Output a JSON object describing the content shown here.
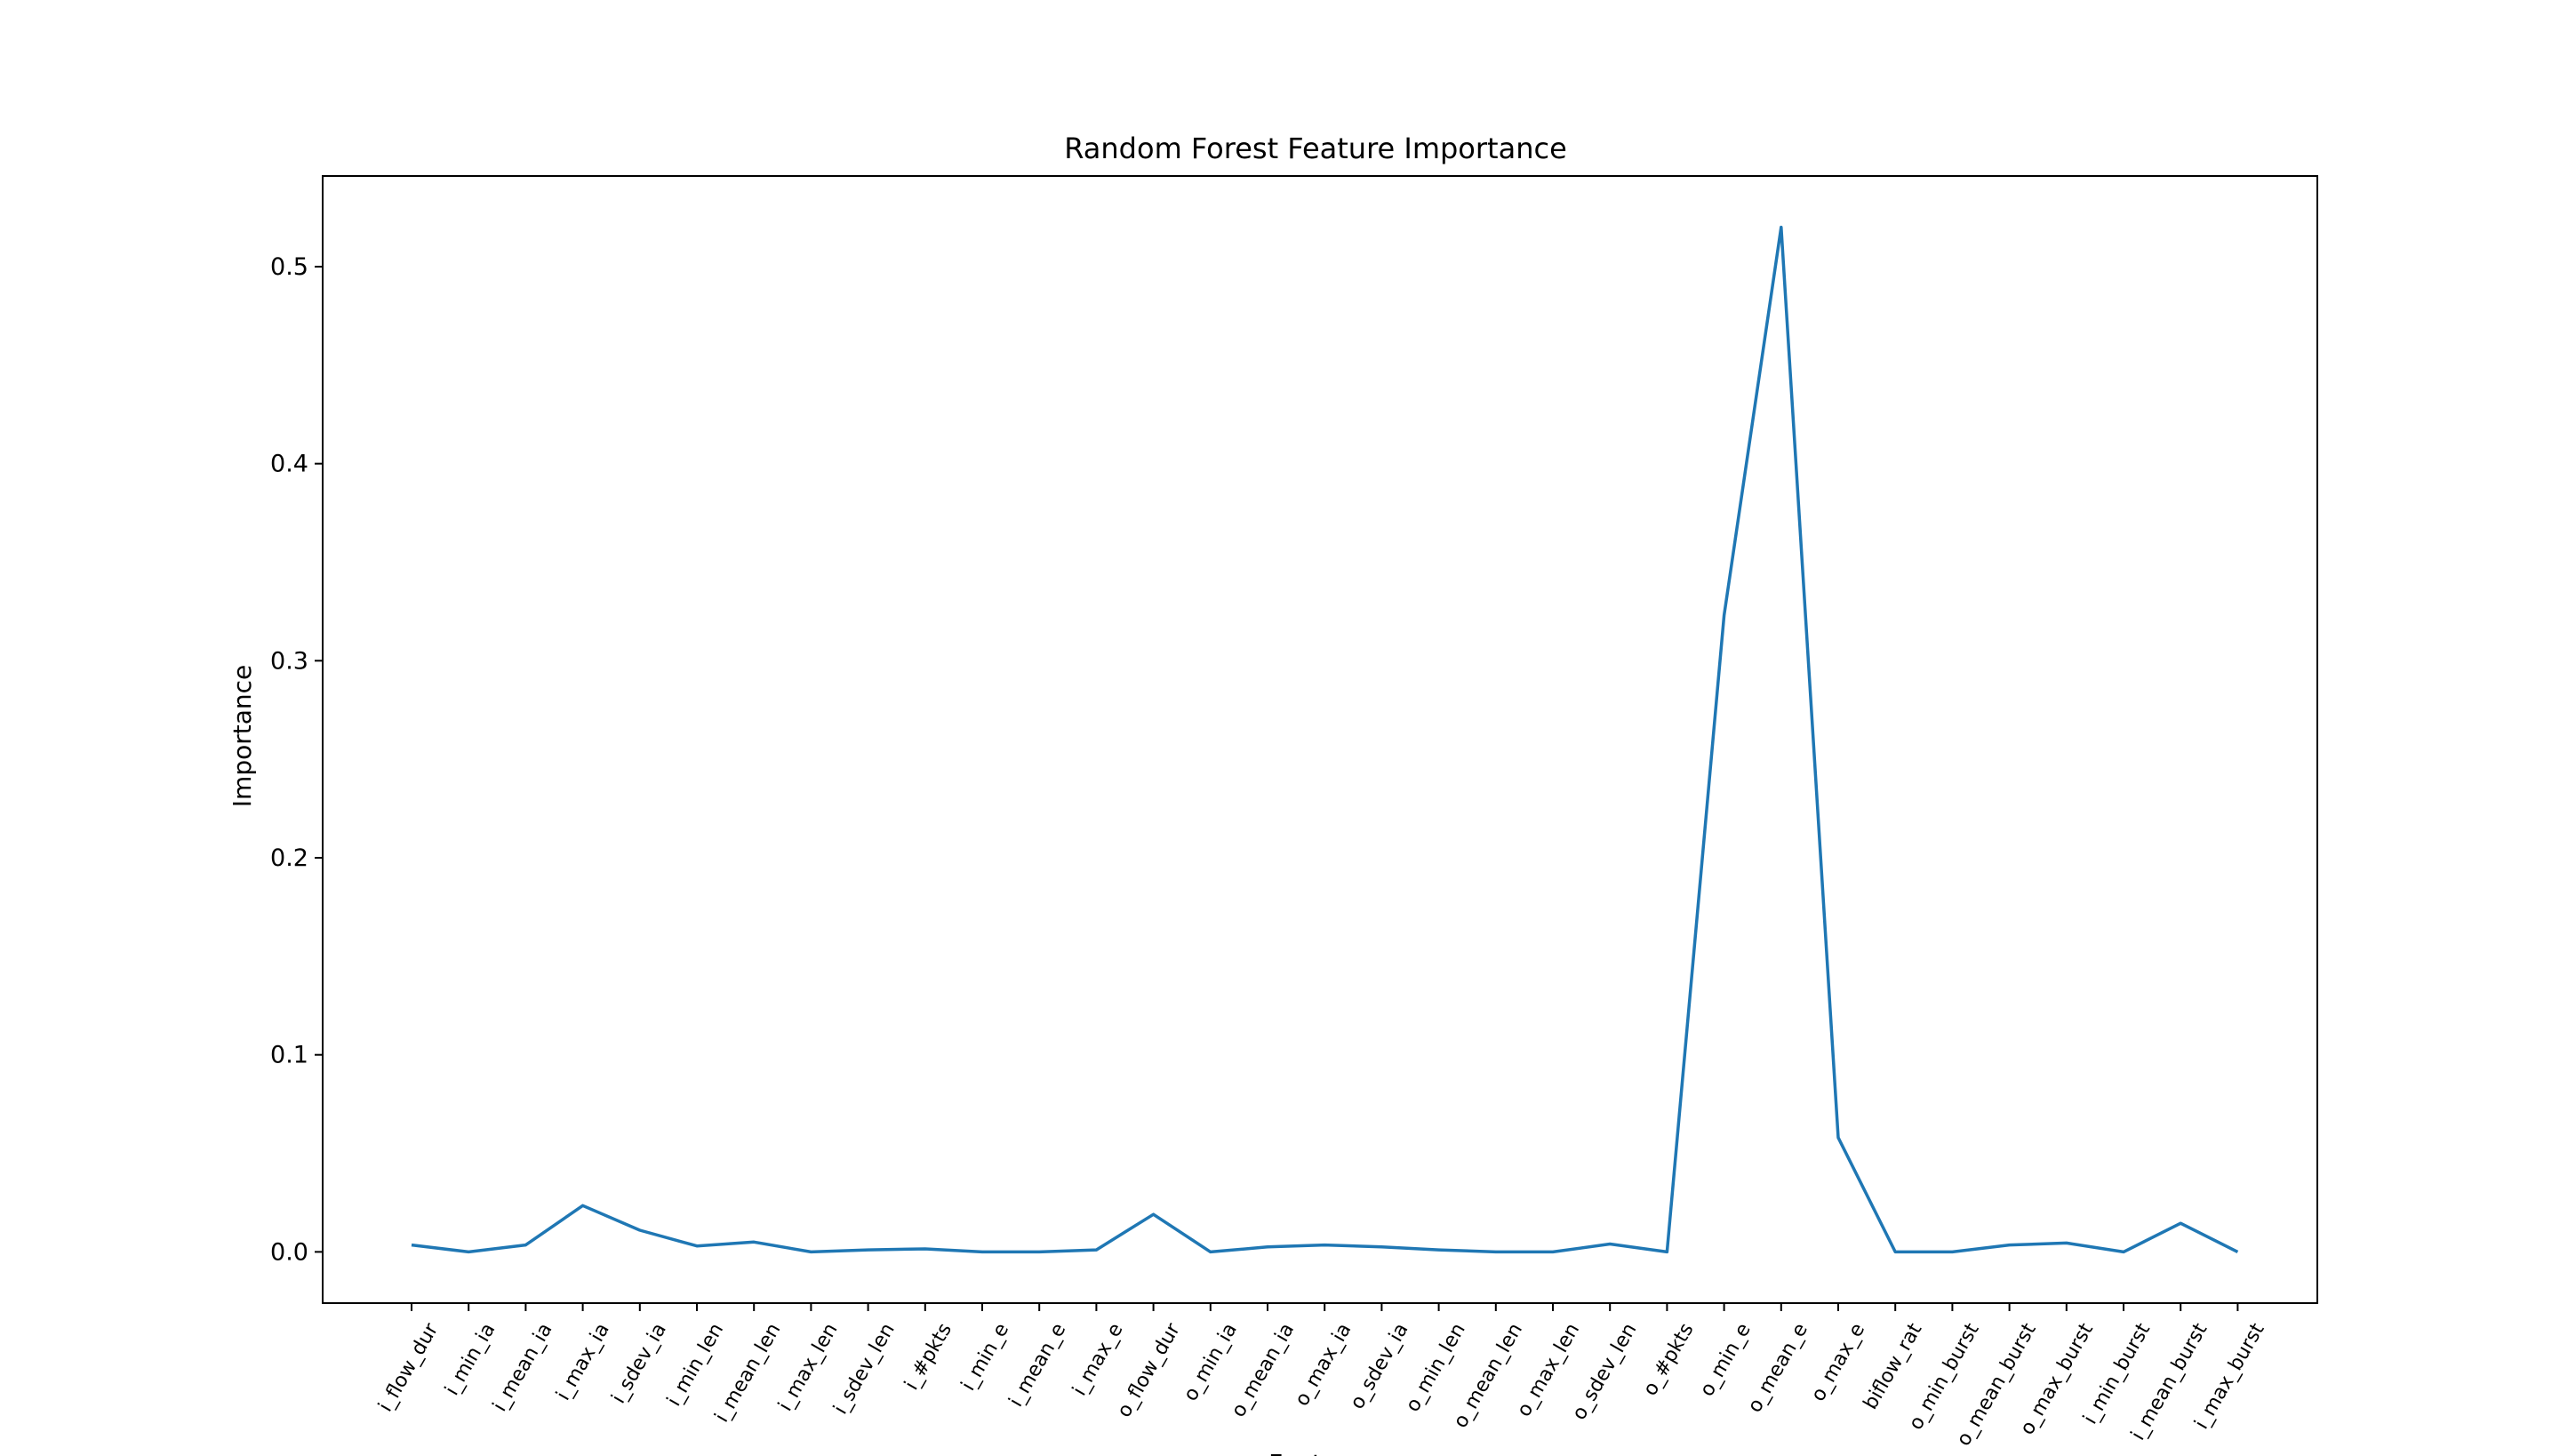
{
  "chart_data": {
    "type": "line",
    "title": "Random Forest Feature Importance",
    "xlabel": "Feature",
    "ylabel": "Importance",
    "ylim": [
      -0.026,
      0.546
    ],
    "yticks": [
      "0.0",
      "0.1",
      "0.2",
      "0.3",
      "0.4",
      "0.5"
    ],
    "grid": false,
    "line_color": "#1f77b4",
    "categories": [
      "i_flow_dur",
      "i_min_ia",
      "i_mean_ia",
      "i_max_ia",
      "i_sdev_ia",
      "i_min_len",
      "i_mean_len",
      "i_max_len",
      "i_sdev_len",
      "i_#pkts",
      "i_min_e",
      "i_mean_e",
      "i_max_e",
      "o_flow_dur",
      "o_min_ia",
      "o_mean_ia",
      "o_max_ia",
      "o_sdev_ia",
      "o_min_len",
      "o_mean_len",
      "o_max_len",
      "o_sdev_len",
      "o_#pkts",
      "o_min_e",
      "o_mean_e",
      "o_max_e",
      "biflow_rat",
      "o_min_burst",
      "o_mean_burst",
      "o_max_burst",
      "i_min_burst",
      "i_mean_burst",
      "i_max_burst"
    ],
    "values": [
      0.0035,
      0.0,
      0.0035,
      0.0235,
      0.011,
      0.003,
      0.005,
      0.0,
      0.001,
      0.0015,
      0.0,
      0.0,
      0.001,
      0.019,
      0.0,
      0.0025,
      0.0035,
      0.0025,
      0.001,
      0.0,
      0.0,
      0.004,
      0.0,
      0.323,
      0.52,
      0.058,
      0.0,
      0.0,
      0.0035,
      0.0045,
      0.0,
      0.0145,
      0.0
    ]
  }
}
